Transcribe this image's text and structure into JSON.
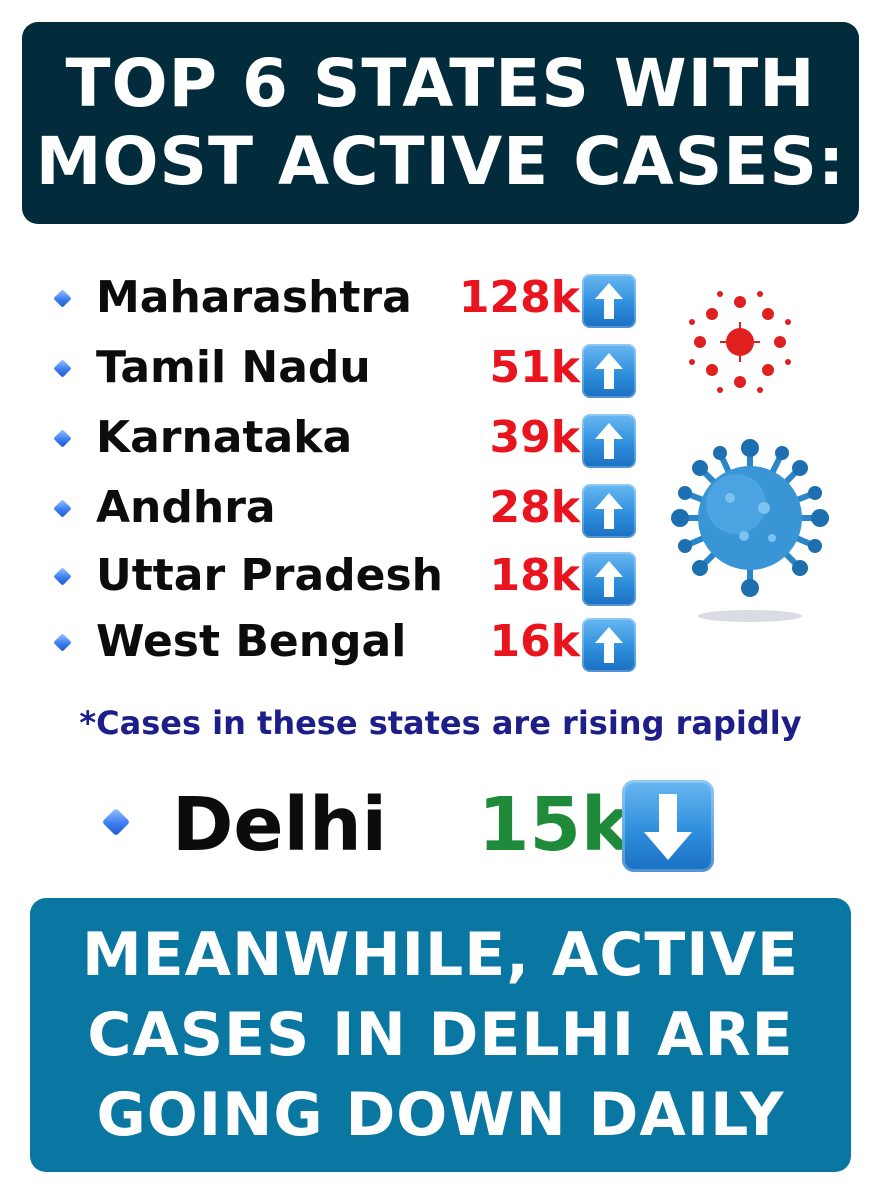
{
  "title": {
    "line1": "TOP 6 STATES WITH",
    "line2": "MOST ACTIVE CASES:"
  },
  "states": [
    {
      "name": "Maharashtra",
      "count": "128k",
      "trend_icon": "up-arrow-icon"
    },
    {
      "name": "Tamil Nadu",
      "count": "51k",
      "trend_icon": "up-arrow-icon"
    },
    {
      "name": "Karnataka",
      "count": "39k",
      "trend_icon": "up-arrow-icon"
    },
    {
      "name": "Andhra",
      "count": "28k",
      "trend_icon": "up-arrow-icon"
    },
    {
      "name": "Uttar Pradesh",
      "count": "18k",
      "trend_icon": "up-arrow-icon"
    },
    {
      "name": "West Bengal",
      "count": "16k",
      "trend_icon": "up-arrow-icon"
    }
  ],
  "note": "*Cases in these states are rising rapidly",
  "delhi": {
    "name": "Delhi",
    "count": "15k",
    "trend_icon": "down-arrow-icon"
  },
  "bottom": {
    "line1": "MEANWHILE, ACTIVE",
    "line2": "CASES IN DELHI ARE",
    "line3": "GOING DOWN DAILY"
  },
  "colors": {
    "title_bg": "#022c3c",
    "bottom_bg": "#0a77a3",
    "rising_count": "#e8141e",
    "falling_count": "#1f8a3a",
    "note_text": "#1d1e8a"
  },
  "illustrations": [
    "virus-small-icon",
    "virus-large-icon"
  ]
}
